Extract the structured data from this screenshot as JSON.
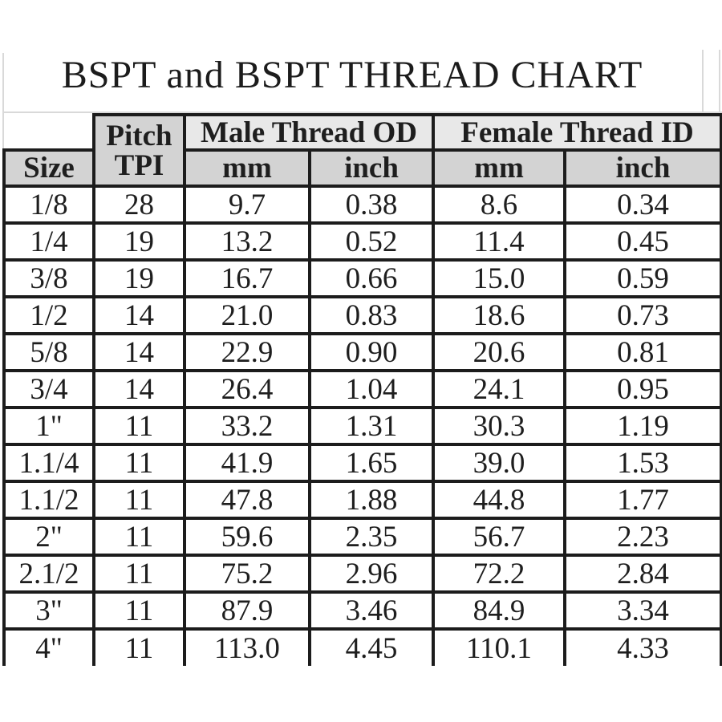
{
  "page": {
    "title": "BSPT and BSPT THREAD CHART"
  },
  "table": {
    "headers": {
      "size": "Size",
      "pitch_line1": "Pitch",
      "pitch_line2": "TPI",
      "male_group": "Male Thread OD",
      "female_group": "Female Thread ID",
      "male_mm": "mm",
      "male_inch": "inch",
      "female_mm": "mm",
      "female_inch": "inch"
    },
    "rows": [
      {
        "size": "1/8",
        "tpi": "28",
        "male_mm": "9.7",
        "male_inch": "0.38",
        "female_mm": "8.6",
        "female_inch": "0.34"
      },
      {
        "size": "1/4",
        "tpi": "19",
        "male_mm": "13.2",
        "male_inch": "0.52",
        "female_mm": "11.4",
        "female_inch": "0.45"
      },
      {
        "size": "3/8",
        "tpi": "19",
        "male_mm": "16.7",
        "male_inch": "0.66",
        "female_mm": "15.0",
        "female_inch": "0.59"
      },
      {
        "size": "1/2",
        "tpi": "14",
        "male_mm": "21.0",
        "male_inch": "0.83",
        "female_mm": "18.6",
        "female_inch": "0.73"
      },
      {
        "size": "5/8",
        "tpi": "14",
        "male_mm": "22.9",
        "male_inch": "0.90",
        "female_mm": "20.6",
        "female_inch": "0.81"
      },
      {
        "size": "3/4",
        "tpi": "14",
        "male_mm": "26.4",
        "male_inch": "1.04",
        "female_mm": "24.1",
        "female_inch": "0.95"
      },
      {
        "size": "1\"",
        "tpi": "11",
        "male_mm": "33.2",
        "male_inch": "1.31",
        "female_mm": "30.3",
        "female_inch": "1.19"
      },
      {
        "size": "1.1/4",
        "tpi": "11",
        "male_mm": "41.9",
        "male_inch": "1.65",
        "female_mm": "39.0",
        "female_inch": "1.53"
      },
      {
        "size": "1.1/2",
        "tpi": "11",
        "male_mm": "47.8",
        "male_inch": "1.88",
        "female_mm": "44.8",
        "female_inch": "1.77"
      },
      {
        "size": "2\"",
        "tpi": "11",
        "male_mm": "59.6",
        "male_inch": "2.35",
        "female_mm": "56.7",
        "female_inch": "2.23"
      },
      {
        "size": "2.1/2",
        "tpi": "11",
        "male_mm": "75.2",
        "male_inch": "2.96",
        "female_mm": "72.2",
        "female_inch": "2.84"
      },
      {
        "size": "3\"",
        "tpi": "11",
        "male_mm": "87.9",
        "male_inch": "3.46",
        "female_mm": "84.9",
        "female_inch": "3.34"
      },
      {
        "size": "4\"",
        "tpi": "11",
        "male_mm": "113.0",
        "male_inch": "4.45",
        "female_mm": "110.1",
        "female_inch": "4.33"
      }
    ],
    "column_keys": [
      "size",
      "tpi",
      "male_mm",
      "male_inch",
      "female_mm",
      "female_inch"
    ]
  },
  "colors": {
    "border": "#1c1c1c",
    "header_group_bg": "#e8e8e8",
    "header_sub_bg": "#d3d3d3",
    "grid_line": "#d9d9d9",
    "background": "#ffffff"
  }
}
